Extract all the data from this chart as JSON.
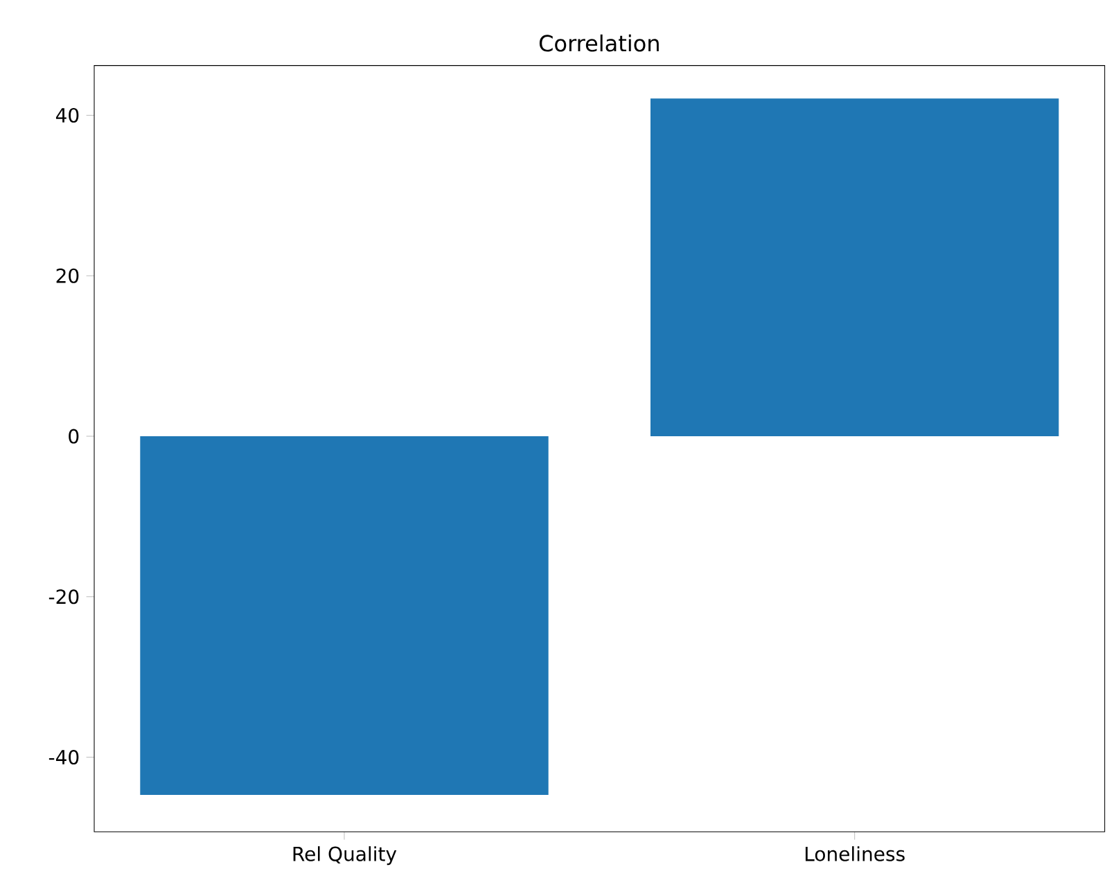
{
  "chart_data": {
    "type": "bar",
    "title": "Correlation",
    "categories": [
      "Rel Quality",
      "Loneliness"
    ],
    "values": [
      -44.7,
      42.1
    ],
    "color": "#1f77b4",
    "ylim": [
      -49.3,
      46.2
    ],
    "yticks": [
      -40,
      -20,
      0,
      20,
      40
    ]
  }
}
